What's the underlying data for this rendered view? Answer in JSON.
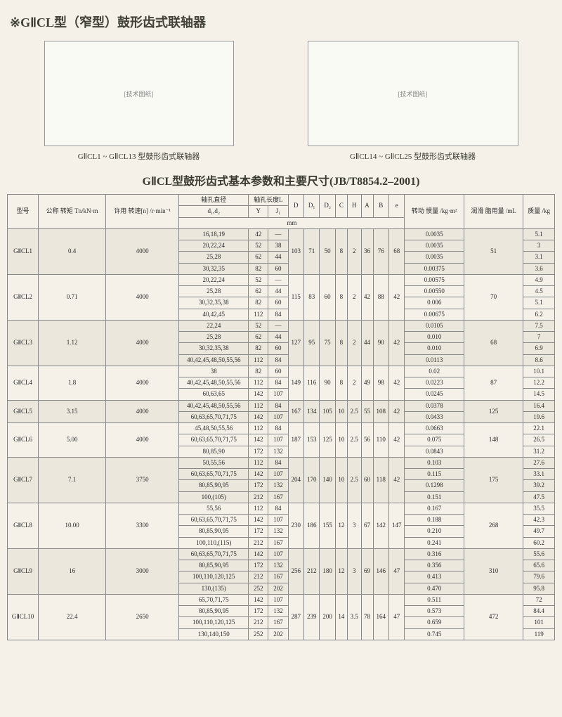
{
  "title": "※GⅡCL型（窄型）鼓形齿式联轴器",
  "diagram_left_caption": "GⅡCL1 ~ GⅡCL13 型鼓形齿式联轴器",
  "diagram_right_caption": "GⅡCL14 ~ GⅡCL25 型鼓形齿式联轴器",
  "diagram_placeholder": "[技术图纸]",
  "table_title": "GⅡCL型鼓形齿式基本参数和主要尺寸(JB/T8854.2–2001)",
  "hdr": {
    "model": "型号",
    "torque": "公称\n转矩\nTn/kN·m",
    "speed": "许用\n转速[n]\n/r·min⁻¹",
    "bore": "轴孔直径",
    "bore_sub": "d₁,d₂",
    "len": "轴孔长度L",
    "len_y": "Y",
    "len_j": "J₁",
    "mm": "mm",
    "D": "D",
    "D1": "D₁",
    "D2": "D₂",
    "C": "C",
    "H": "H",
    "A": "A",
    "B": "B",
    "e": "e",
    "inertia": "转动\n惯量\n/kg·m²",
    "grease": "润滑\n脂用量\n/mL",
    "mass": "质量\n/kg"
  },
  "rows": [
    {
      "shade": true,
      "model": "GⅡCL1",
      "tq": "0.4",
      "sp": "4000",
      "D": "103",
      "D1": "71",
      "D2": "50",
      "C": "8",
      "H": "2",
      "A": "36",
      "B": "76",
      "e": "68",
      "gr": "51",
      "sub": [
        {
          "d": "16,18,19",
          "Y": "42",
          "J": "—",
          "I": "0.0035",
          "M": "5.1"
        },
        {
          "d": "20,22,24",
          "Y": "52",
          "J": "38",
          "I": "0.0035",
          "M": "3"
        },
        {
          "d": "25,28",
          "Y": "62",
          "J": "44",
          "I": "0.0035",
          "M": "3.1"
        },
        {
          "d": "30,32,35",
          "Y": "82",
          "J": "60",
          "I": "0.00375",
          "M": "3.6"
        }
      ]
    },
    {
      "shade": false,
      "model": "GⅡCL2",
      "tq": "0.71",
      "sp": "4000",
      "D": "115",
      "D1": "83",
      "D2": "60",
      "C": "8",
      "H": "2",
      "A": "42",
      "B": "88",
      "e": "42",
      "gr": "70",
      "sub": [
        {
          "d": "20,22,24",
          "Y": "52",
          "J": "—",
          "I": "0.00575",
          "M": "4.9"
        },
        {
          "d": "25,28",
          "Y": "62",
          "J": "44",
          "I": "0.00550",
          "M": "4.5"
        },
        {
          "d": "30,32,35,38",
          "Y": "82",
          "J": "60",
          "I": "0.006",
          "M": "5.1"
        },
        {
          "d": "40,42,45",
          "Y": "112",
          "J": "84",
          "I": "0.00675",
          "M": "6.2"
        }
      ]
    },
    {
      "shade": true,
      "model": "GⅡCL3",
      "tq": "1.12",
      "sp": "4000",
      "D": "127",
      "D1": "95",
      "D2": "75",
      "C": "8",
      "H": "2",
      "A": "44",
      "B": "90",
      "e": "42",
      "gr": "68",
      "sub": [
        {
          "d": "22,24",
          "Y": "52",
          "J": "—",
          "I": "0.0105",
          "M": "7.5"
        },
        {
          "d": "25,28",
          "Y": "62",
          "J": "44",
          "I": "0.010",
          "M": "7"
        },
        {
          "d": "30,32,35,38",
          "Y": "82",
          "J": "60",
          "I": "0.010",
          "M": "6.9"
        },
        {
          "d": "40,42,45,48,50,55,56",
          "Y": "112",
          "J": "84",
          "I": "0.0113",
          "M": "8.6"
        }
      ]
    },
    {
      "shade": false,
      "model": "GⅡCL4",
      "tq": "1.8",
      "sp": "4000",
      "D": "149",
      "D1": "116",
      "D2": "90",
      "C": "8",
      "H": "2",
      "A": "49",
      "B": "98",
      "e": "42",
      "gr": "87",
      "sub": [
        {
          "d": "38",
          "Y": "82",
          "J": "60",
          "I": "0.02",
          "M": "10.1"
        },
        {
          "d": "40,42,45,48,50,55,56",
          "Y": "112",
          "J": "84",
          "I": "0.0223",
          "M": "12.2"
        },
        {
          "d": "60,63,65",
          "Y": "142",
          "J": "107",
          "I": "0.0245",
          "M": "14.5"
        }
      ]
    },
    {
      "shade": true,
      "model": "GⅡCL5",
      "tq": "3.15",
      "sp": "4000",
      "D": "167",
      "D1": "134",
      "D2": "105",
      "C": "10",
      "H": "2.5",
      "A": "55",
      "B": "108",
      "e": "42",
      "gr": "125",
      "sub": [
        {
          "d": "40,42,45,48,50,55,56",
          "Y": "112",
          "J": "84",
          "I": "0.0378",
          "M": "16.4"
        },
        {
          "d": "60,63,65,70,71,75",
          "Y": "142",
          "J": "107",
          "I": "0.0433",
          "M": "19.6"
        }
      ]
    },
    {
      "shade": false,
      "model": "GⅡCL6",
      "tq": "5.00",
      "sp": "4000",
      "D": "187",
      "D1": "153",
      "D2": "125",
      "C": "10",
      "H": "2.5",
      "A": "56",
      "B": "110",
      "e": "42",
      "gr": "148",
      "sub": [
        {
          "d": "45,48,50,55,56",
          "Y": "112",
          "J": "84",
          "I": "0.0663",
          "M": "22.1"
        },
        {
          "d": "60,63,65,70,71,75",
          "Y": "142",
          "J": "107",
          "I": "0.075",
          "M": "26.5"
        },
        {
          "d": "80,85,90",
          "Y": "172",
          "J": "132",
          "I": "0.0843",
          "M": "31.2"
        }
      ]
    },
    {
      "shade": true,
      "model": "GⅡCL7",
      "tq": "7.1",
      "sp": "3750",
      "D": "204",
      "D1": "170",
      "D2": "140",
      "C": "10",
      "H": "2.5",
      "A": "60",
      "B": "118",
      "e": "42",
      "gr": "175",
      "sub": [
        {
          "d": "50,55,56",
          "Y": "112",
          "J": "84",
          "I": "0.103",
          "M": "27.6"
        },
        {
          "d": "60,63,65,70,71,75",
          "Y": "142",
          "J": "107",
          "I": "0.115",
          "M": "33.1"
        },
        {
          "d": "80,85,90,95",
          "Y": "172",
          "J": "132",
          "I": "0.1298",
          "M": "39.2"
        },
        {
          "d": "100,(105)",
          "Y": "212",
          "J": "167",
          "I": "0.151",
          "M": "47.5"
        }
      ]
    },
    {
      "shade": false,
      "model": "GⅡCL8",
      "tq": "10.00",
      "sp": "3300",
      "D": "230",
      "D1": "186",
      "D2": "155",
      "C": "12",
      "H": "3",
      "A": "67",
      "B": "142",
      "e": "147",
      "gr": "268",
      "sub": [
        {
          "d": "55,56",
          "Y": "112",
          "J": "84",
          "I": "0.167",
          "M": "35.5"
        },
        {
          "d": "60,63,65,70,71,75",
          "Y": "142",
          "J": "107",
          "I": "0.188",
          "M": "42.3"
        },
        {
          "d": "80,85,90,95",
          "Y": "172",
          "J": "132",
          "I": "0.210",
          "M": "49.7"
        },
        {
          "d": "100,110,(115)",
          "Y": "212",
          "J": "167",
          "I": "0.241",
          "M": "60.2"
        }
      ]
    },
    {
      "shade": true,
      "model": "GⅡCL9",
      "tq": "16",
      "sp": "3000",
      "D": "256",
      "D1": "212",
      "D2": "180",
      "C": "12",
      "H": "3",
      "A": "69",
      "B": "146",
      "e": "47",
      "gr": "310",
      "sub": [
        {
          "d": "60,63,65,70,71,75",
          "Y": "142",
          "J": "107",
          "I": "0.316",
          "M": "55.6"
        },
        {
          "d": "80,85,90,95",
          "Y": "172",
          "J": "132",
          "I": "0.356",
          "M": "65.6"
        },
        {
          "d": "100,110,120,125",
          "Y": "212",
          "J": "167",
          "I": "0.413",
          "M": "79.6"
        },
        {
          "d": "130,(135)",
          "Y": "252",
          "J": "202",
          "I": "0.470",
          "M": "95.8"
        }
      ]
    },
    {
      "shade": false,
      "model": "GⅡCL10",
      "tq": "22.4",
      "sp": "2650",
      "D": "287",
      "D1": "239",
      "D2": "200",
      "C": "14",
      "H": "3.5",
      "A": "78",
      "B": "164",
      "e": "47",
      "gr": "472",
      "sub": [
        {
          "d": "65,70,71,75",
          "Y": "142",
          "J": "107",
          "I": "0.511",
          "M": "72"
        },
        {
          "d": "80,85,90,95",
          "Y": "172",
          "J": "132",
          "I": "0.573",
          "M": "84.4"
        },
        {
          "d": "100,110,120,125",
          "Y": "212",
          "J": "167",
          "I": "0.659",
          "M": "101"
        },
        {
          "d": "130,140,150",
          "Y": "252",
          "J": "202",
          "I": "0.745",
          "M": "119"
        }
      ]
    }
  ]
}
